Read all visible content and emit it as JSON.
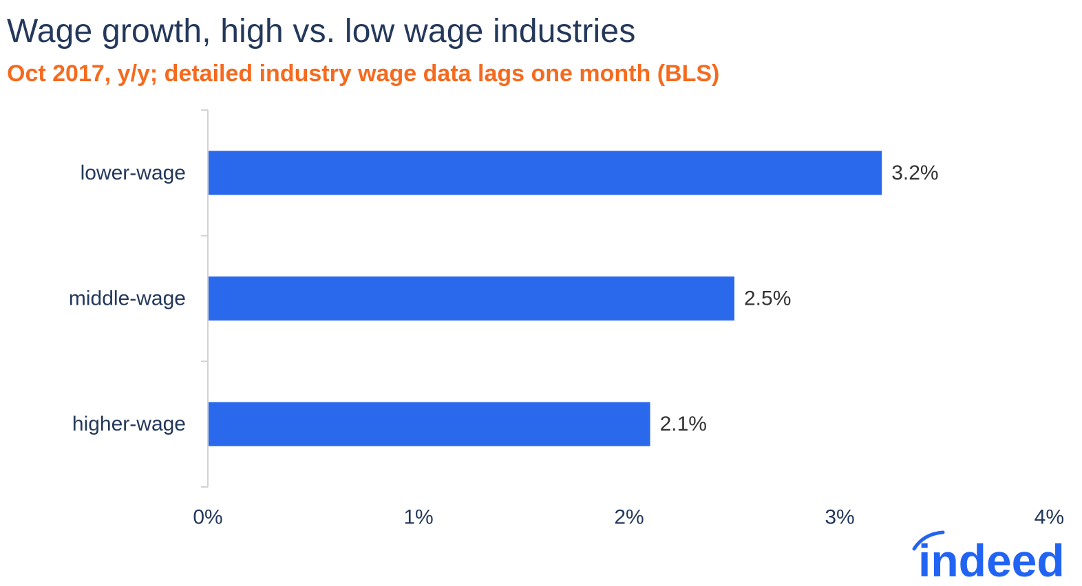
{
  "chart_data": {
    "type": "bar",
    "orientation": "horizontal",
    "title": "Wage growth, high vs. low wage industries",
    "subtitle": "Oct 2017, y/y; detailed industry wage data lags one month (BLS)",
    "categories": [
      "lower-wage",
      "middle-wage",
      "higher-wage"
    ],
    "values": [
      3.2,
      2.5,
      2.1
    ],
    "value_labels": [
      "3.2%",
      "2.5%",
      "2.1%"
    ],
    "xlim": [
      0,
      4
    ],
    "x_ticks": [
      0,
      1,
      2,
      3,
      4
    ],
    "x_tick_labels": [
      "0%",
      "1%",
      "2%",
      "3%",
      "4%"
    ],
    "xlabel": "",
    "ylabel": "",
    "grid": false,
    "bar_color": "#2a68ec",
    "title_color": "#24385b",
    "subtitle_color": "#f56a1e"
  },
  "brand": {
    "logo_name": "indeed-logo",
    "logo_text": "indeed",
    "logo_color": "#2164f3"
  }
}
